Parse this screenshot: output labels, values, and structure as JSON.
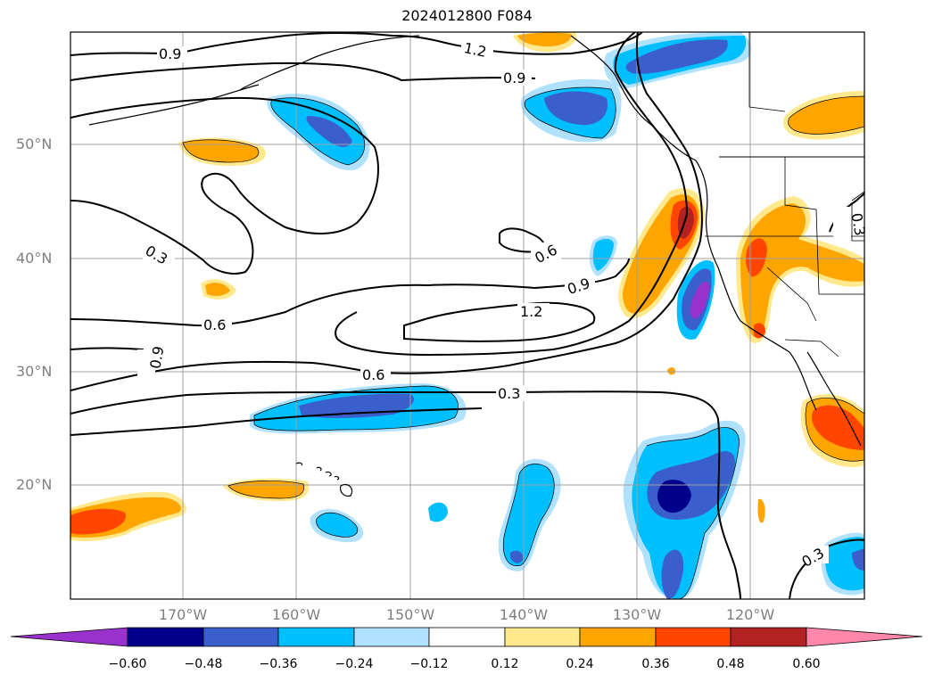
{
  "title": "2024012800 F084",
  "lat_labels": [
    "50°N",
    "40°N",
    "30°N",
    "20°N"
  ],
  "lon_labels": [
    "170°W",
    "160°W",
    "150°W",
    "140°W",
    "130°W",
    "120°W"
  ],
  "contour_labels": [
    "0.9",
    "1.2",
    "0.9",
    "0.6",
    "0.3",
    "0.9",
    "0.6",
    "1.2",
    "0.6",
    "0.3",
    "0.9",
    "0.3",
    "0.3"
  ],
  "colorbar": {
    "ticks": [
      "−0.60",
      "−0.48",
      "−0.36",
      "−0.24",
      "−0.12",
      "0.12",
      "0.24",
      "0.36",
      "0.48",
      "0.60"
    ],
    "colors": [
      "#9932cc",
      "#00008b",
      "#3a5fcd",
      "#00bfff",
      "#b0e2ff",
      "#ffffff",
      "#ffe98c",
      "#ffa500",
      "#ff4500",
      "#b22222",
      "#ff88aa"
    ]
  },
  "fill_colors": {
    "neg_light": "#b0e2ff",
    "neg_mid": "#00bfff",
    "neg_dark": "#3a5fcd",
    "neg_deep": "#00008b",
    "neg_max": "#9932cc",
    "pos_light": "#ffe98c",
    "pos_mid": "#ffa500",
    "pos_dark": "#ff4500",
    "pos_deep": "#b22222"
  }
}
